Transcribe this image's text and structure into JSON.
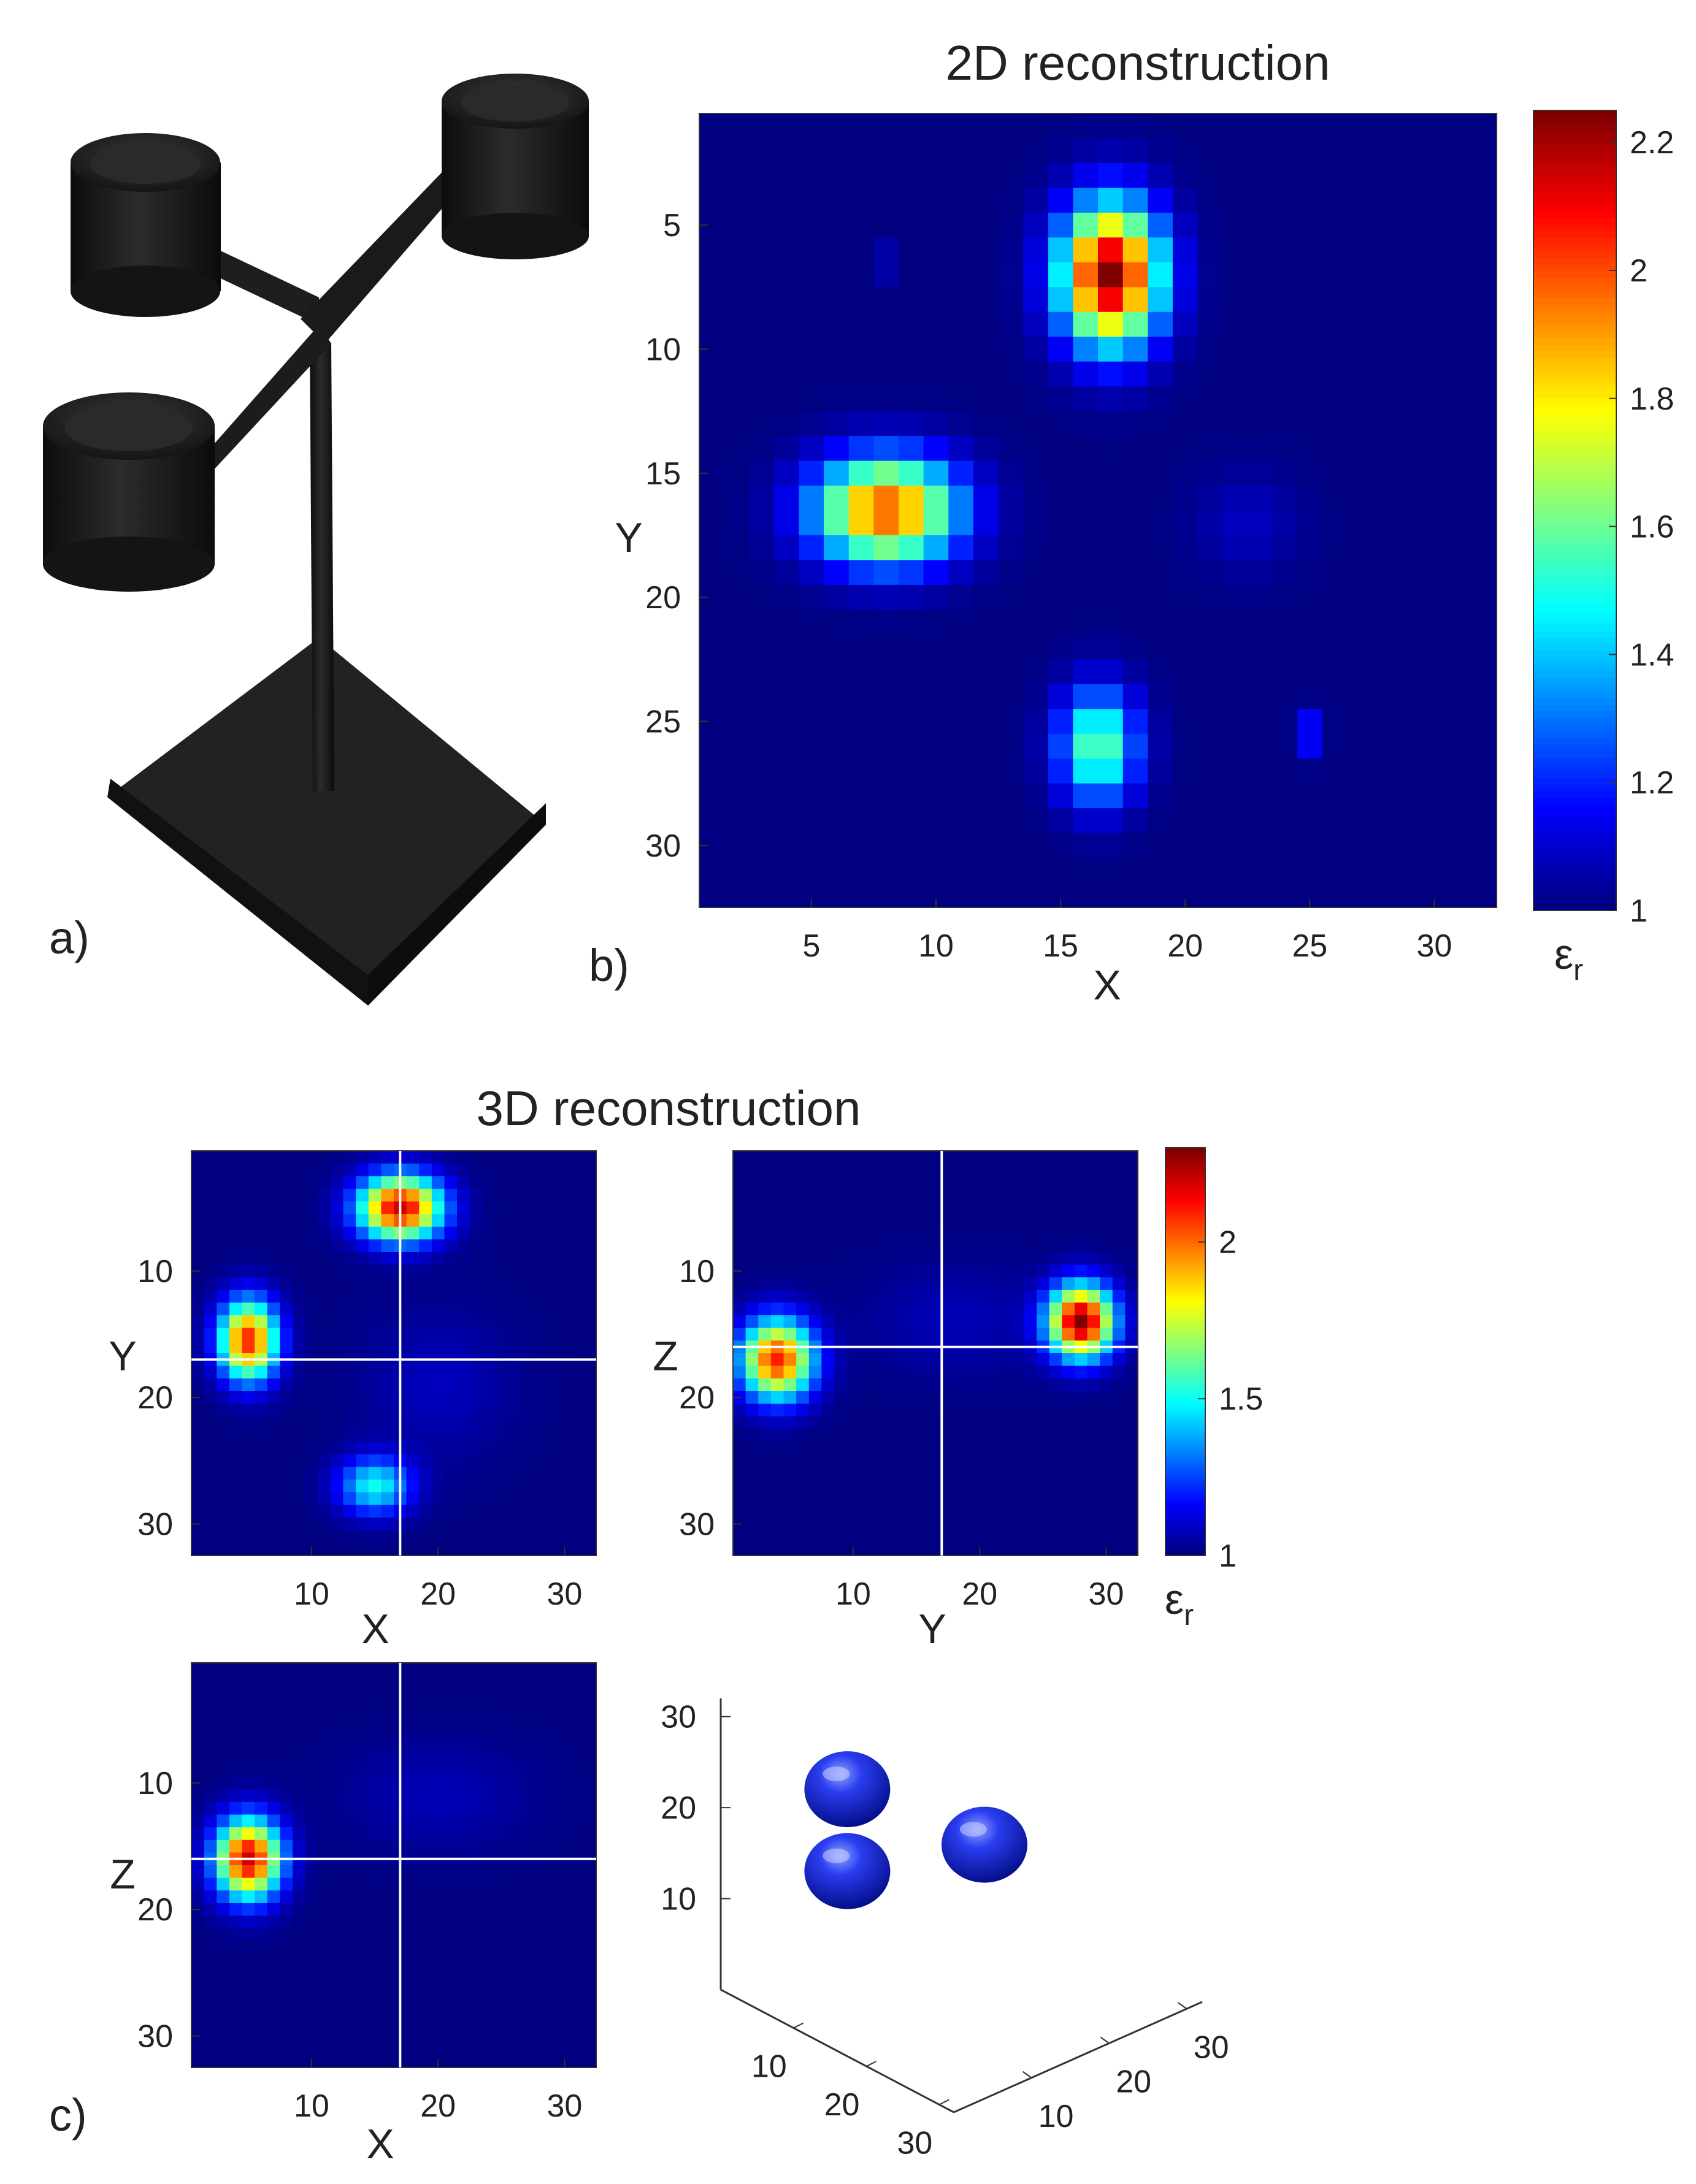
{
  "panel_labels": {
    "a": "a)",
    "b": "b)",
    "c": "c)"
  },
  "photo": {
    "description_icon": "3d-printed-phantom-photo-icon"
  },
  "chart_data": [
    {
      "id": "2d",
      "type": "heatmap",
      "title": "2D reconstruction",
      "xlabel": "X",
      "ylabel": "Y",
      "grid_size": 32,
      "xticks": [
        5,
        10,
        15,
        20,
        25,
        30
      ],
      "yticks": [
        5,
        10,
        15,
        20,
        25,
        30
      ],
      "colorbar": {
        "min": 1,
        "max": 2.25,
        "ticks": [
          1,
          1.2,
          1.4,
          1.6,
          1.8,
          2,
          2.2
        ],
        "label": "εr",
        "colormap": "jet"
      },
      "blobs": [
        {
          "x": 17,
          "y": 7,
          "peak": 2.25,
          "sx": 1.4,
          "sy": 2.0
        },
        {
          "x": 8,
          "y": 16.5,
          "peak": 2.0,
          "sx": 2.0,
          "sy": 1.5
        },
        {
          "x": 16.5,
          "y": 26,
          "peak": 1.6,
          "sx": 1.1,
          "sy": 1.6
        },
        {
          "x": 22.5,
          "y": 17,
          "peak": 1.08,
          "sx": 1.5,
          "sy": 1.5
        },
        {
          "x": 25,
          "y": 25.5,
          "peak": 1.2,
          "sx": 0.4,
          "sy": 0.6
        },
        {
          "x": 8,
          "y": 6.5,
          "peak": 1.1,
          "sx": 0.4,
          "sy": 0.4
        }
      ]
    },
    {
      "id": "3d-xy",
      "type": "heatmap",
      "title": "3D reconstruction",
      "xlabel": "X",
      "ylabel": "Y",
      "grid_size": 32,
      "xticks": [
        10,
        20,
        30
      ],
      "yticks": [
        10,
        20,
        30
      ],
      "crosshair": {
        "x": 16,
        "y": 16
      },
      "blobs": [
        {
          "x": 17,
          "y": 5,
          "peak": 2.2,
          "sx": 2.3,
          "sy": 1.8
        },
        {
          "x": 5,
          "y": 15.5,
          "peak": 2.1,
          "sx": 1.6,
          "sy": 2.2
        },
        {
          "x": 15,
          "y": 27,
          "peak": 1.5,
          "sx": 2.0,
          "sy": 1.6
        },
        {
          "x": 20,
          "y": 19,
          "peak": 1.08,
          "sx": 4.0,
          "sy": 4.0
        }
      ]
    },
    {
      "id": "3d-yz",
      "type": "heatmap",
      "xlabel": "Y",
      "ylabel": "Z",
      "grid_size": 32,
      "xticks": [
        10,
        20,
        30
      ],
      "yticks": [
        10,
        20,
        30
      ],
      "crosshair": {
        "x": 16,
        "y": 15
      },
      "colorbar": {
        "min": 1,
        "max": 2.3,
        "ticks": [
          1,
          1.5,
          2
        ],
        "label": "εr",
        "colormap": "jet"
      },
      "blobs": [
        {
          "x": 28,
          "y": 14,
          "peak": 2.3,
          "sx": 1.8,
          "sy": 2.0
        },
        {
          "x": 4,
          "y": 17,
          "peak": 2.1,
          "sx": 2.0,
          "sy": 2.2
        },
        {
          "x": 18,
          "y": 14,
          "peak": 1.07,
          "sx": 5.0,
          "sy": 3.0
        }
      ]
    },
    {
      "id": "3d-xz",
      "type": "heatmap",
      "xlabel": "X",
      "ylabel": "Z",
      "grid_size": 32,
      "xticks": [
        10,
        20,
        30
      ],
      "yticks": [
        10,
        20,
        30
      ],
      "crosshair": {
        "x": 16,
        "y": 15
      },
      "blobs": [
        {
          "x": 5,
          "y": 16,
          "peak": 2.2,
          "sx": 1.8,
          "sy": 2.2
        },
        {
          "x": 20,
          "y": 11,
          "peak": 1.07,
          "sx": 5.0,
          "sy": 3.0
        }
      ]
    },
    {
      "id": "3d-isosurface",
      "type": "scatter",
      "xticks": [
        10,
        20,
        30
      ],
      "yticks": [
        10,
        20,
        30
      ],
      "zticks": [
        10,
        20,
        30
      ],
      "objects": [
        {
          "x": 8,
          "y": 16,
          "z": 20
        },
        {
          "x": 28,
          "y": 14,
          "z": 23
        },
        {
          "x": 8,
          "y": 16,
          "z": 11
        }
      ],
      "object_color": "#0a18c8"
    }
  ]
}
